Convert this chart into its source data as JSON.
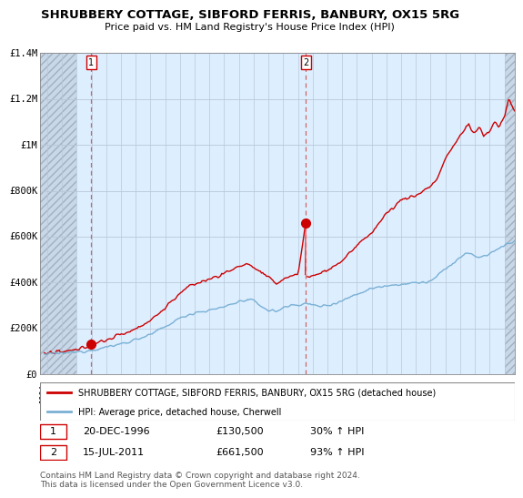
{
  "title": "SHRUBBERY COTTAGE, SIBFORD FERRIS, BANBURY, OX15 5RG",
  "subtitle": "Price paid vs. HM Land Registry's House Price Index (HPI)",
  "red_line_color": "#cc0000",
  "blue_line_color": "#7ab0d4",
  "plot_bg_color": "#ddeeff",
  "hatch_color": "#c8d8e8",
  "grid_color": "#b8c8d8",
  "ylim": [
    0,
    1400000
  ],
  "yticks": [
    0,
    200000,
    400000,
    600000,
    800000,
    1000000,
    1200000,
    1400000
  ],
  "ytick_labels": [
    "£0",
    "£200K",
    "£400K",
    "£600K",
    "£800K",
    "£1M",
    "£1.2M",
    "£1.4M"
  ],
  "xstart": 1993.5,
  "xend": 2025.7,
  "xtick_years": [
    1994,
    1995,
    1996,
    1997,
    1998,
    1999,
    2000,
    2001,
    2002,
    2003,
    2004,
    2005,
    2006,
    2007,
    2008,
    2009,
    2010,
    2011,
    2012,
    2013,
    2014,
    2015,
    2016,
    2017,
    2018,
    2019,
    2020,
    2021,
    2022,
    2023,
    2024,
    2025
  ],
  "marker1_x": 1996.97,
  "marker1_y": 130500,
  "marker2_x": 2011.54,
  "marker2_y": 661500,
  "legend_red_label": "SHRUBBERY COTTAGE, SIBFORD FERRIS, BANBURY, OX15 5RG (detached house)",
  "legend_blue_label": "HPI: Average price, detached house, Cherwell",
  "marker1_date": "20-DEC-1996",
  "marker1_price": "£130,500",
  "marker1_hpi": "30% ↑ HPI",
  "marker2_date": "15-JUL-2011",
  "marker2_price": "£661,500",
  "marker2_hpi": "93% ↑ HPI",
  "footer_text": "Contains HM Land Registry data © Crown copyright and database right 2024.\nThis data is licensed under the Open Government Licence v3.0."
}
